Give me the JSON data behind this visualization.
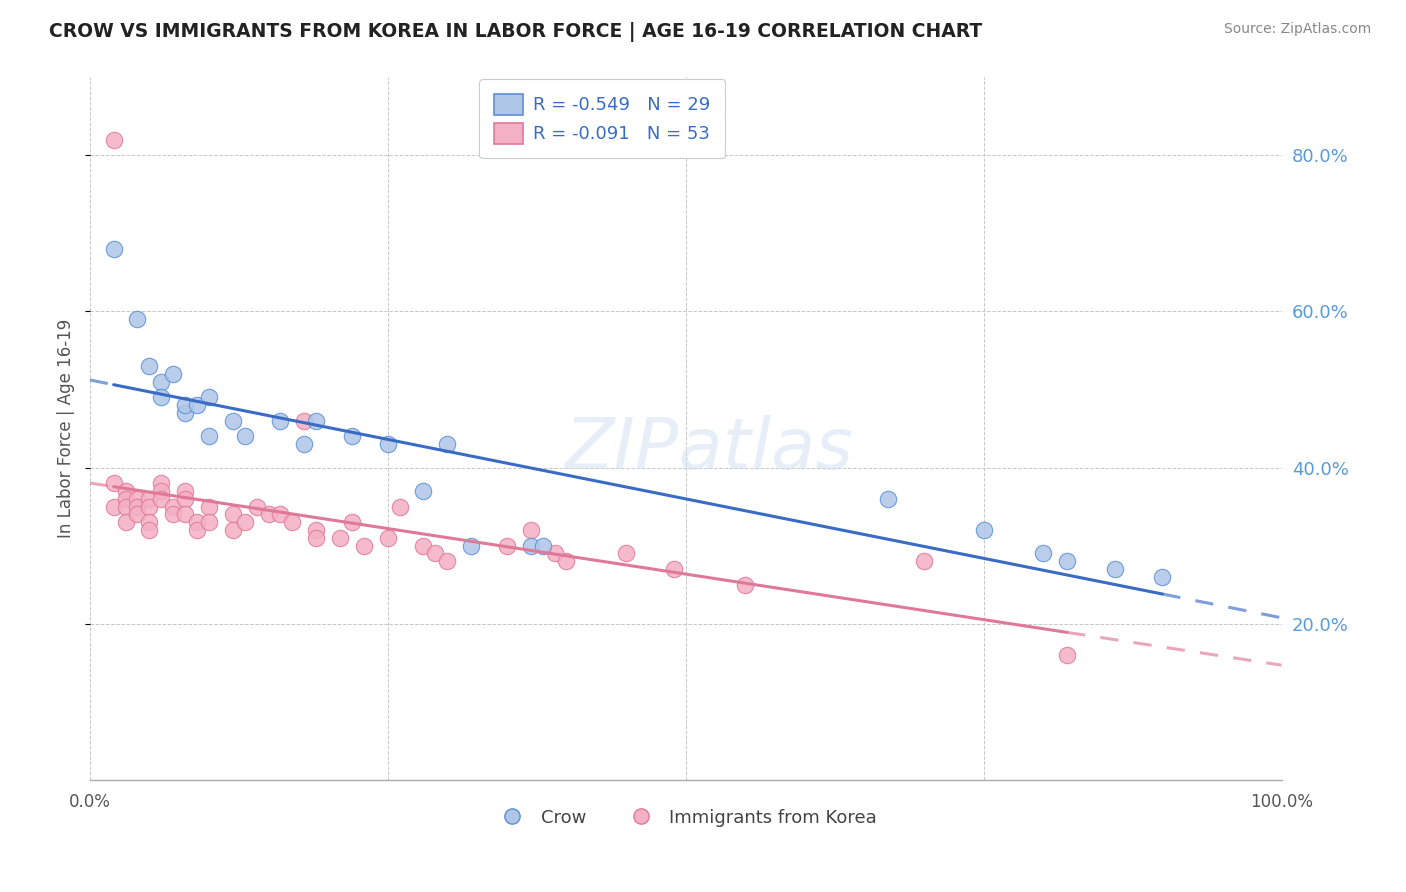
{
  "title": "CROW VS IMMIGRANTS FROM KOREA IN LABOR FORCE | AGE 16-19 CORRELATION CHART",
  "source": "Source: ZipAtlas.com",
  "ylabel": "In Labor Force | Age 16-19",
  "legend_blue_r": "R = -0.549",
  "legend_blue_n": "N = 29",
  "legend_pink_r": "R = -0.091",
  "legend_pink_n": "N = 53",
  "legend_label_blue": "Crow",
  "legend_label_pink": "Immigrants from Korea",
  "watermark": "ZIPatlas",
  "xlim": [
    0.0,
    1.0
  ],
  "ylim": [
    0.0,
    0.9
  ],
  "yticks": [
    0.2,
    0.4,
    0.6,
    0.8
  ],
  "ytick_labels": [
    "20.0%",
    "40.0%",
    "60.0%",
    "80.0%"
  ],
  "background_color": "#ffffff",
  "plot_bg_color": "#ffffff",
  "grid_color": "#c8c8c8",
  "blue_scatter_color": "#aec6e8",
  "pink_scatter_color": "#f4b0c4",
  "blue_edge_color": "#5b8fd4",
  "pink_edge_color": "#e07898",
  "blue_line_color": "#3a6cc5",
  "pink_line_color": "#e07898",
  "crow_x": [
    0.02,
    0.04,
    0.05,
    0.06,
    0.06,
    0.07,
    0.08,
    0.08,
    0.09,
    0.1,
    0.1,
    0.12,
    0.13,
    0.16,
    0.18,
    0.19,
    0.22,
    0.25,
    0.28,
    0.3,
    0.32,
    0.37,
    0.38,
    0.67,
    0.75,
    0.8,
    0.82,
    0.86,
    0.9
  ],
  "crow_y": [
    0.68,
    0.59,
    0.53,
    0.51,
    0.49,
    0.52,
    0.47,
    0.48,
    0.48,
    0.49,
    0.44,
    0.46,
    0.44,
    0.46,
    0.43,
    0.46,
    0.44,
    0.43,
    0.37,
    0.43,
    0.3,
    0.3,
    0.3,
    0.36,
    0.32,
    0.29,
    0.28,
    0.27,
    0.26
  ],
  "korea_x": [
    0.02,
    0.02,
    0.02,
    0.03,
    0.03,
    0.03,
    0.03,
    0.04,
    0.04,
    0.04,
    0.05,
    0.05,
    0.05,
    0.05,
    0.06,
    0.06,
    0.06,
    0.07,
    0.07,
    0.08,
    0.08,
    0.08,
    0.09,
    0.09,
    0.1,
    0.1,
    0.12,
    0.12,
    0.13,
    0.14,
    0.15,
    0.16,
    0.17,
    0.18,
    0.19,
    0.19,
    0.21,
    0.22,
    0.23,
    0.25,
    0.26,
    0.28,
    0.29,
    0.3,
    0.35,
    0.37,
    0.39,
    0.4,
    0.45,
    0.49,
    0.55,
    0.7,
    0.82
  ],
  "korea_y": [
    0.82,
    0.38,
    0.35,
    0.37,
    0.36,
    0.35,
    0.33,
    0.36,
    0.35,
    0.34,
    0.36,
    0.35,
    0.33,
    0.32,
    0.38,
    0.37,
    0.36,
    0.35,
    0.34,
    0.37,
    0.36,
    0.34,
    0.33,
    0.32,
    0.35,
    0.33,
    0.34,
    0.32,
    0.33,
    0.35,
    0.34,
    0.34,
    0.33,
    0.46,
    0.32,
    0.31,
    0.31,
    0.33,
    0.3,
    0.31,
    0.35,
    0.3,
    0.29,
    0.28,
    0.3,
    0.32,
    0.29,
    0.28,
    0.29,
    0.27,
    0.25,
    0.28,
    0.16
  ]
}
